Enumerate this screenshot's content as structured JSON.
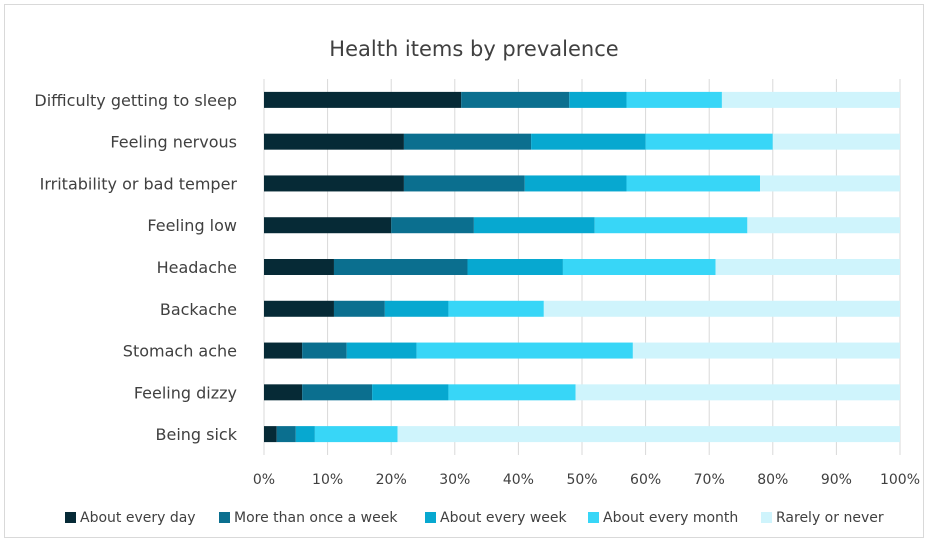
{
  "chart_data": {
    "type": "bar",
    "orientation": "horizontal",
    "stacked": "percent",
    "title": "Health items by prevalence",
    "categories": [
      "Difficulty getting to sleep",
      "Feeling nervous",
      "Irritability or bad temper",
      "Feeling low",
      "Headache",
      "Backache",
      "Stomach ache",
      "Feeling dizzy",
      "Being sick"
    ],
    "series": [
      {
        "name": "About every day",
        "color": "#062a36",
        "values": [
          31,
          22,
          22,
          20,
          11,
          11,
          6,
          6,
          2
        ]
      },
      {
        "name": "More than once a week",
        "color": "#0b6f8f",
        "values": [
          17,
          20,
          19,
          13,
          21,
          8,
          7,
          11,
          3
        ]
      },
      {
        "name": "About every week",
        "color": "#07a8d0",
        "values": [
          9,
          18,
          16,
          19,
          15,
          10,
          11,
          12,
          3
        ]
      },
      {
        "name": "About every month",
        "color": "#38d6f7",
        "values": [
          15,
          20,
          21,
          24,
          24,
          15,
          34,
          20,
          13
        ]
      },
      {
        "name": "Rarely or never",
        "color": "#cff4fc",
        "values": [
          28,
          20,
          22,
          24,
          29,
          56,
          42,
          51,
          79
        ]
      }
    ],
    "xlim": [
      0,
      100
    ],
    "x_ticks": [
      "0%",
      "10%",
      "20%",
      "30%",
      "40%",
      "50%",
      "60%",
      "70%",
      "80%",
      "90%",
      "100%"
    ],
    "grid": "vertical",
    "legend_position": "bottom"
  }
}
